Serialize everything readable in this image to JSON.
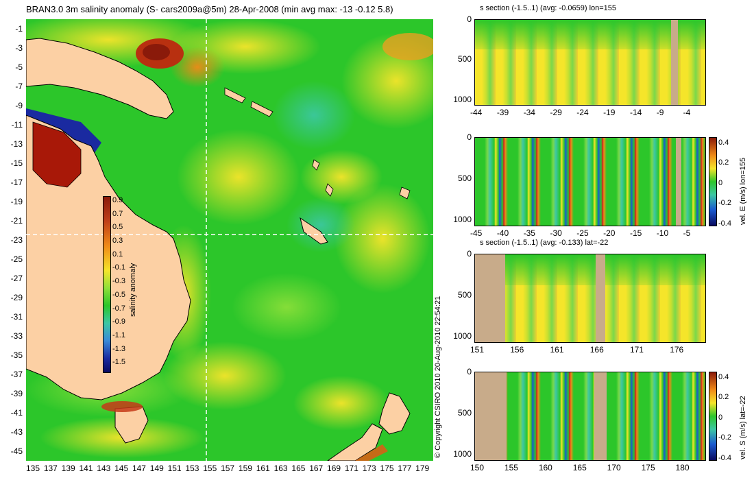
{
  "map": {
    "title": "BRAN3.0 3m salinity anomaly (S- cars2009a@5m) 28-Apr-2008 (min avg max: -13 -0.12 5.8)",
    "lat_ticks": [
      "-1",
      "-3",
      "-5",
      "-7",
      "-9",
      "-11",
      "-13",
      "-15",
      "-17",
      "-19",
      "-21",
      "-23",
      "-25",
      "-27",
      "-29",
      "-31",
      "-33",
      "-35",
      "-37",
      "-39",
      "-41",
      "-43",
      "-45"
    ],
    "lon_ticks": [
      "135",
      "137",
      "139",
      "141",
      "143",
      "145",
      "147",
      "149",
      "151",
      "153",
      "155",
      "157",
      "159",
      "161",
      "163",
      "165",
      "167",
      "169",
      "171",
      "173",
      "175",
      "177",
      "179"
    ],
    "colorbar": {
      "label": "salinity anomaly",
      "ticks": [
        "0.9",
        "0.7",
        "0.5",
        "0.3",
        "0.1",
        "-0.1",
        "-0.3",
        "-0.5",
        "-0.7",
        "-0.9",
        "-1.1",
        "-1.3",
        "-1.5"
      ]
    },
    "colors": {
      "ocean": "#2cc62a",
      "land": "#fcd0a4",
      "section_line": "#ffffff"
    }
  },
  "copyright": "© Copyright CSIRO 2010   20-Aug-2010 22:54:21",
  "panels": [
    {
      "title": "s section (-1.5..1) (avg: -0.0659) lon=155",
      "y_ticks": [
        "0",
        "500",
        "1000"
      ],
      "x_ticks": [
        "-44",
        "-39",
        "-34",
        "-29",
        "-24",
        "-19",
        "-14",
        "-9",
        "-4"
      ],
      "colorbar": null
    },
    {
      "title": "",
      "y_ticks": [
        "0",
        "500",
        "1000"
      ],
      "x_ticks": [
        "-45",
        "-40",
        "-35",
        "-30",
        "-25",
        "-20",
        "-15",
        "-10",
        "-5"
      ],
      "colorbar": {
        "label": "vel. E (m/s) lon=155",
        "ticks": [
          "0.4",
          "0.2",
          "0",
          "-0.2",
          "-0.4"
        ]
      }
    },
    {
      "title": "s section (-1.5..1) (avg: -0.133) lat=-22",
      "y_ticks": [
        "0",
        "500",
        "1000"
      ],
      "x_ticks": [
        "151",
        "156",
        "161",
        "166",
        "171",
        "176"
      ],
      "colorbar": null
    },
    {
      "title": "",
      "y_ticks": [
        "0",
        "500",
        "1000"
      ],
      "x_ticks": [
        "150",
        "155",
        "160",
        "165",
        "170",
        "175",
        "180"
      ],
      "colorbar": {
        "label": "vel. S (m/s) lat=-22",
        "ticks": [
          "0.4",
          "0.2",
          "0",
          "-0.2",
          "-0.4"
        ]
      }
    }
  ]
}
